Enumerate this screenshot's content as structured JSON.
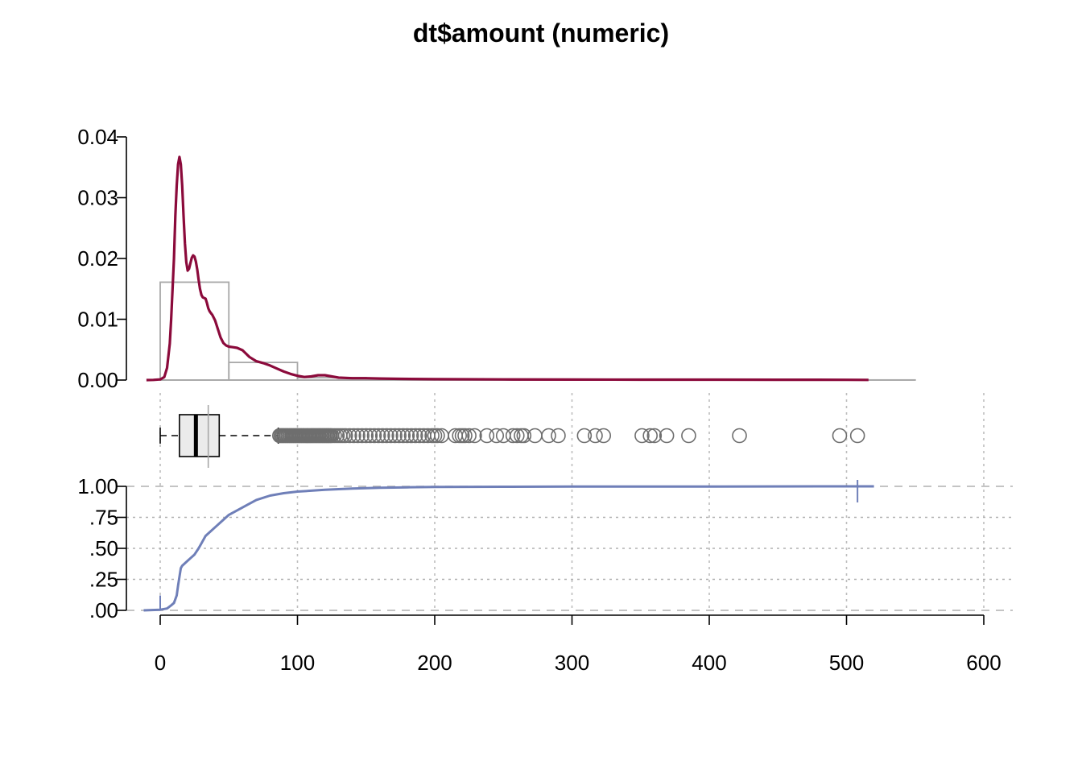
{
  "chart_data": {
    "type": "histogram+density+boxplot+ecdf",
    "title": "dt$amount (numeric)",
    "xlim": [
      0,
      600
    ],
    "x_ticks": [
      "0",
      "100",
      "200",
      "300",
      "400",
      "500",
      "600"
    ],
    "density_panel": {
      "ylim": [
        0,
        0.04
      ],
      "y_ticks": [
        "0.00",
        "0.01",
        "0.02",
        "0.03",
        "0.04"
      ],
      "histogram": {
        "bin_edges": [
          0,
          50,
          100,
          150,
          200,
          250,
          300,
          350,
          400,
          450,
          500,
          550
        ],
        "density": [
          0.0161,
          0.0029,
          0.0004,
          0.0002,
          0.0001,
          5e-05,
          3e-05,
          3e-05,
          2e-05,
          1e-05,
          2e-05
        ]
      },
      "density_curve": {
        "color": "#8b0a3b",
        "x": [
          -10,
          -5,
          0,
          3,
          5,
          7,
          8,
          10,
          11,
          12,
          13,
          14,
          15,
          16,
          17,
          18,
          19,
          20,
          21,
          22,
          23,
          24,
          25,
          26,
          27,
          28,
          29,
          30,
          31,
          32,
          33,
          34,
          35,
          36,
          37,
          38,
          40,
          42,
          44,
          46,
          48,
          50,
          53,
          56,
          60,
          65,
          70,
          75,
          80,
          85,
          90,
          95,
          100,
          105,
          110,
          115,
          120,
          125,
          130,
          140,
          150,
          160,
          175,
          200,
          250,
          300,
          350,
          400,
          450,
          500,
          516
        ],
        "y": [
          0,
          2e-05,
          0.0001,
          0.0005,
          0.002,
          0.006,
          0.01,
          0.02,
          0.027,
          0.032,
          0.0355,
          0.0367,
          0.0355,
          0.032,
          0.027,
          0.0225,
          0.0194,
          0.018,
          0.0183,
          0.0192,
          0.0201,
          0.0205,
          0.0203,
          0.0195,
          0.0182,
          0.0165,
          0.015,
          0.014,
          0.0136,
          0.0135,
          0.0134,
          0.0127,
          0.0118,
          0.0113,
          0.011,
          0.0107,
          0.0098,
          0.0084,
          0.007,
          0.0061,
          0.0057,
          0.0055,
          0.0054,
          0.0053,
          0.0049,
          0.0038,
          0.0031,
          0.0028,
          0.0024,
          0.0019,
          0.0014,
          0.001,
          0.0007,
          0.0005,
          0.0006,
          0.0008,
          0.0008,
          0.0006,
          0.0004,
          0.0003,
          0.0003,
          0.00025,
          0.0002,
          0.00015,
          0.0001,
          8e-05,
          7e-05,
          6e-05,
          5e-05,
          4e-05,
          3e-05
        ]
      }
    },
    "boxplot": {
      "whisker_low": 0,
      "q1": 14,
      "median": 26,
      "q3": 43,
      "whisker_high": 86,
      "mean": 35,
      "outliers": [
        87,
        88,
        89,
        90,
        91,
        92,
        93,
        94,
        95,
        96,
        97,
        98,
        99,
        100,
        101,
        102,
        103,
        104,
        105,
        106,
        107,
        108,
        109,
        110,
        111,
        112,
        113,
        114,
        115,
        116,
        117,
        118,
        119,
        120,
        121,
        122,
        123,
        124,
        125,
        127,
        129,
        131,
        133,
        135,
        138,
        141,
        144,
        147,
        150,
        153,
        156,
        159,
        162,
        165,
        168,
        171,
        174,
        177,
        180,
        183,
        186,
        189,
        192,
        195,
        198,
        200,
        202,
        205,
        215,
        218,
        220,
        222,
        225,
        229,
        238,
        245,
        250,
        257,
        260,
        263,
        265,
        273,
        283,
        290,
        309,
        317,
        323,
        351,
        357,
        360,
        369,
        385,
        422,
        495,
        508
      ]
    },
    "ecdf_panel": {
      "ylim": [
        0,
        1
      ],
      "y_ticks": [
        ".00",
        ".25",
        ".50",
        ".75",
        "1.00"
      ],
      "color": "#6f7fb8",
      "x": [
        -12,
        0,
        5,
        8,
        10,
        12,
        13,
        14,
        15,
        16,
        18,
        20,
        22,
        25,
        28,
        30,
        33,
        35,
        40,
        45,
        50,
        55,
        60,
        65,
        70,
        80,
        90,
        100,
        120,
        140,
        160,
        180,
        200,
        250,
        300,
        400,
        508,
        520
      ],
      "y": [
        0,
        0.005,
        0.015,
        0.04,
        0.06,
        0.12,
        0.2,
        0.27,
        0.34,
        0.36,
        0.38,
        0.4,
        0.42,
        0.45,
        0.5,
        0.54,
        0.6,
        0.62,
        0.67,
        0.72,
        0.77,
        0.8,
        0.83,
        0.86,
        0.89,
        0.925,
        0.945,
        0.958,
        0.972,
        0.982,
        0.988,
        0.992,
        0.995,
        0.997,
        0.998,
        0.999,
        1,
        1
      ]
    }
  }
}
